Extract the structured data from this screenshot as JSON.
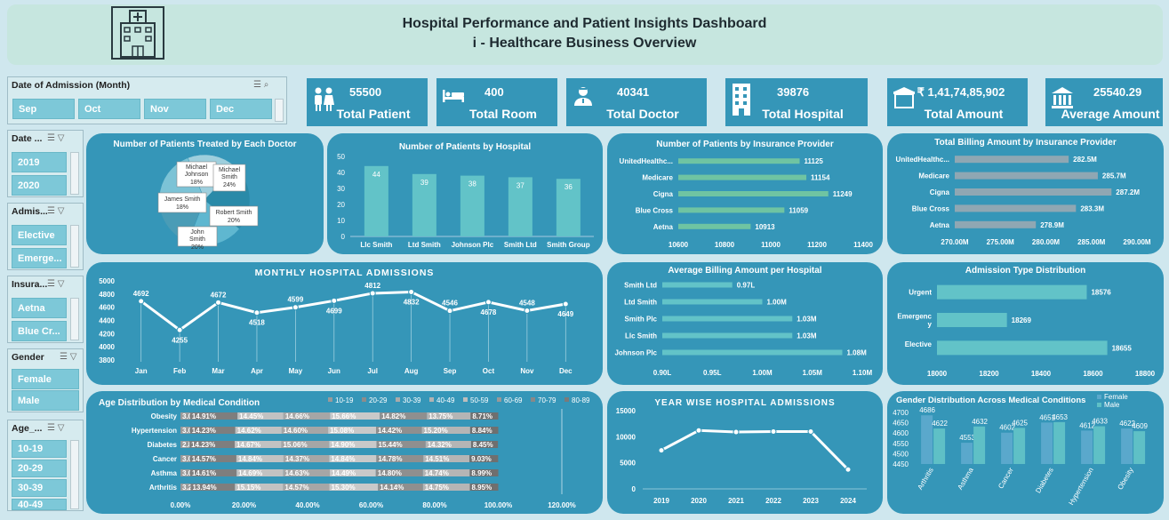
{
  "header": {
    "title": "Hospital Performance and Patient Insights Dashboard",
    "subtitle": "i - Healthcare Business Overview",
    "icon": "hospital-icon"
  },
  "slicers": {
    "date_month": {
      "title": "Date of Admission (Month)",
      "items": [
        "Sep",
        "Oct",
        "Nov",
        "Dec"
      ]
    },
    "date_year": {
      "title": "Date ...",
      "items": [
        "2019",
        "2020"
      ]
    },
    "admission": {
      "title": "Admis...",
      "items": [
        "Elective",
        "Emerge..."
      ]
    },
    "insurance": {
      "title": "Insura...",
      "items": [
        "Aetna",
        "Blue Cr..."
      ]
    },
    "gender": {
      "title": "Gender",
      "items": [
        "Female",
        "Male"
      ]
    },
    "age": {
      "title": "Age_...",
      "items": [
        "10-19",
        "20-29",
        "30-39",
        "40-49"
      ]
    }
  },
  "kpis": [
    {
      "value": "55500",
      "label": "Total Patient",
      "icon": "patients-icon"
    },
    {
      "value": "400",
      "label": "Total Room",
      "icon": "bed-icon"
    },
    {
      "value": "40341",
      "label": "Total Doctor",
      "icon": "doctor-icon"
    },
    {
      "value": "39876",
      "label": "Total Hospital",
      "icon": "building-icon"
    },
    {
      "value": "₹ 1,41,74,85,902",
      "label": "Total Amount",
      "icon": "rupee-icon"
    },
    {
      "value": "25540.29",
      "label": "Average Amount",
      "icon": "bank-icon"
    }
  ],
  "colors": {
    "panel": "#3596b8",
    "accent": "#5fc0c6",
    "bar_gray": "#8fa7b3",
    "header_bg": "#c6e6df"
  },
  "chart_data": [
    {
      "id": "doctor_pie",
      "type": "pie",
      "title": "Number of Patients Treated by Each Doctor",
      "labels": [
        "Michael Johnson",
        "Michael Smith",
        "Robert Smith",
        "John Smith",
        "James Smith"
      ],
      "values": [
        18,
        24,
        20,
        20,
        18
      ],
      "value_labels": [
        "18%",
        "24%",
        "20%",
        "20%",
        "18%"
      ]
    },
    {
      "id": "hospital_bar",
      "type": "bar",
      "title": "Number of Patients by Hospital",
      "categories": [
        "Llc Smith",
        "Ltd Smith",
        "Johnson Plc",
        "Smith Ltd",
        "Smith Group"
      ],
      "values": [
        44,
        39,
        38,
        37,
        36
      ],
      "ylim": [
        0,
        50
      ],
      "yticks": [
        "0",
        "10",
        "20",
        "30",
        "40",
        "50"
      ]
    },
    {
      "id": "insurance_count",
      "type": "bar",
      "orientation": "horizontal",
      "title": "Number of Patients by Insurance Provider",
      "categories": [
        "UnitedHealthc...",
        "Medicare",
        "Cigna",
        "Blue Cross",
        "Aetna"
      ],
      "values": [
        11125,
        11154,
        11249,
        11059,
        10913
      ],
      "value_labels": [
        "11125",
        "11154",
        "11249",
        "11059",
        "10913"
      ],
      "xlim": [
        10600,
        11400
      ],
      "xticks": [
        "10600",
        "10800",
        "11000",
        "11200",
        "11400"
      ]
    },
    {
      "id": "insurance_billing",
      "type": "bar",
      "orientation": "horizontal",
      "title": "Total Billing Amount by Insurance Provider",
      "categories": [
        "UnitedHealthc...",
        "Medicare",
        "Cigna",
        "Blue Cross",
        "Aetna"
      ],
      "values": [
        282.5,
        285.7,
        287.2,
        283.3,
        278.9
      ],
      "value_labels": [
        "282.5M",
        "285.7M",
        "287.2M",
        "283.3M",
        "278.9M"
      ],
      "xlim": [
        270,
        290
      ],
      "xticks": [
        "270.00M",
        "275.00M",
        "280.00M",
        "285.00M",
        "290.00M"
      ]
    },
    {
      "id": "monthly",
      "type": "line",
      "title": "MONTHLY HOSPITAL ADMISSIONS",
      "categories": [
        "Jan",
        "Feb",
        "Mar",
        "Apr",
        "May",
        "Jun",
        "Jul",
        "Aug",
        "Sep",
        "Oct",
        "Nov",
        "Dec"
      ],
      "values": [
        4692,
        4255,
        4672,
        4518,
        4599,
        4699,
        4812,
        4832,
        4546,
        4678,
        4548,
        4649
      ],
      "ylim": [
        3800,
        5000
      ],
      "yticks": [
        "3800",
        "4000",
        "4200",
        "4400",
        "4600",
        "4800",
        "5000"
      ]
    },
    {
      "id": "avg_billing",
      "type": "bar",
      "orientation": "horizontal",
      "title": "Average Billing Amount per Hospital",
      "categories": [
        "Smith Ltd",
        "Ltd Smith",
        "Smith Plc",
        "Llc Smith",
        "Johnson Plc"
      ],
      "values": [
        0.97,
        1.0,
        1.03,
        1.03,
        1.08
      ],
      "value_labels": [
        "0.97L",
        "1.00M",
        "1.03M",
        "1.03M",
        "1.08M"
      ],
      "xlim": [
        0.9,
        1.1
      ],
      "xticks": [
        "0.90L",
        "0.95L",
        "1.00M",
        "1.05M",
        "1.10M"
      ]
    },
    {
      "id": "admission_type",
      "type": "bar",
      "orientation": "horizontal",
      "title": "Admission Type Distribution",
      "categories": [
        "Urgent",
        "Emergency",
        "Elective"
      ],
      "values": [
        18576,
        18269,
        18655
      ],
      "value_labels": [
        "18576",
        "18269",
        "18655"
      ],
      "xlim": [
        18000,
        18800
      ],
      "xticks": [
        "18000",
        "18200",
        "18400",
        "18600",
        "18800"
      ]
    },
    {
      "id": "age_dist",
      "type": "bar",
      "stacked": true,
      "orientation": "horizontal",
      "title": "Age Distribution by Medical Condition",
      "legend": [
        "10-19",
        "20-29",
        "30-39",
        "40-49",
        "50-59",
        "60-69",
        "70-79",
        "80-89"
      ],
      "categories": [
        "Obesity",
        "Hypertension",
        "Diabetes",
        "Cancer",
        "Asthma",
        "Arthritis"
      ],
      "series": [
        {
          "values": [
            3.04,
            3.01,
            2.83,
            3.02,
            3.06,
            3.2
          ],
          "labels": [
            "3.04%",
            "3.01%",
            "2.83%",
            "3.02%",
            "3.06%",
            "3.20%"
          ]
        },
        {
          "values": [
            14.91,
            14.23,
            14.23,
            14.57,
            14.61,
            13.94
          ],
          "labels": [
            "14.91%",
            "14.23%",
            "14.23%",
            "14.57%",
            "14.61%",
            "13.94%"
          ]
        },
        {
          "values": [
            14.45,
            14.62,
            14.67,
            14.84,
            14.69,
            15.15
          ],
          "labels": [
            "14.45%",
            "14.62%",
            "14.67%",
            "14.84%",
            "14.69%",
            "15.15%"
          ]
        },
        {
          "values": [
            14.66,
            14.6,
            15.06,
            14.37,
            14.63,
            14.57
          ],
          "labels": [
            "14.66%",
            "14.60%",
            "15.06%",
            "14.37%",
            "14.63%",
            "14.57%"
          ]
        },
        {
          "values": [
            15.66,
            15.08,
            14.9,
            14.84,
            14.49,
            15.3
          ],
          "labels": [
            "15.66%",
            "15.08%",
            "14.90%",
            "14.84%",
            "14.49%",
            "15.30%"
          ]
        },
        {
          "values": [
            14.82,
            14.42,
            15.44,
            14.78,
            14.8,
            14.14
          ],
          "labels": [
            "14.82%",
            "14.42%",
            "15.44%",
            "14.78%",
            "14.80%",
            "14.14%"
          ]
        },
        {
          "values": [
            13.75,
            15.2,
            14.32,
            14.51,
            14.74,
            14.75
          ],
          "labels": [
            "13.75%",
            "15.20%",
            "14.32%",
            "14.51%",
            "14.74%",
            "14.75%"
          ]
        },
        {
          "values": [
            8.71,
            8.84,
            8.45,
            9.03,
            8.99,
            8.95
          ],
          "labels": [
            "8.71%",
            "8.84%",
            "8.45%",
            "9.03%",
            "8.99%",
            "8.95%"
          ]
        }
      ],
      "xticks": [
        "0.00%",
        "20.00%",
        "40.00%",
        "60.00%",
        "80.00%",
        "100.00%",
        "120.00%"
      ],
      "xlim": [
        0,
        120
      ]
    },
    {
      "id": "yearly",
      "type": "line",
      "title": "YEAR WISE HOSPITAL ADMISSIONS",
      "categories": [
        "2019",
        "2020",
        "2021",
        "2022",
        "2023",
        "2024"
      ],
      "values": [
        7400,
        11200,
        10900,
        11000,
        11000,
        3700
      ],
      "ylim": [
        0,
        15000
      ],
      "yticks": [
        "0",
        "5000",
        "10000",
        "15000"
      ]
    },
    {
      "id": "gender_conditions",
      "type": "bar",
      "title": "Gender Distribution Across Medical Conditions",
      "legend": [
        "Female",
        "Male"
      ],
      "categories": [
        "Arthritis",
        "Asthma",
        "Cancer",
        "Diabetes",
        "Hypertension",
        "Obesity"
      ],
      "series": [
        {
          "name": "Female",
          "values": [
            4686,
            4553,
            4602,
            4651,
            4612,
            4622
          ]
        },
        {
          "name": "Male",
          "values": [
            4622,
            4632,
            4625,
            4653,
            4633,
            4609
          ]
        }
      ],
      "ylim": [
        4450,
        4700
      ],
      "yticks": [
        "4450",
        "4500",
        "4550",
        "4600",
        "4650",
        "4700"
      ]
    }
  ]
}
